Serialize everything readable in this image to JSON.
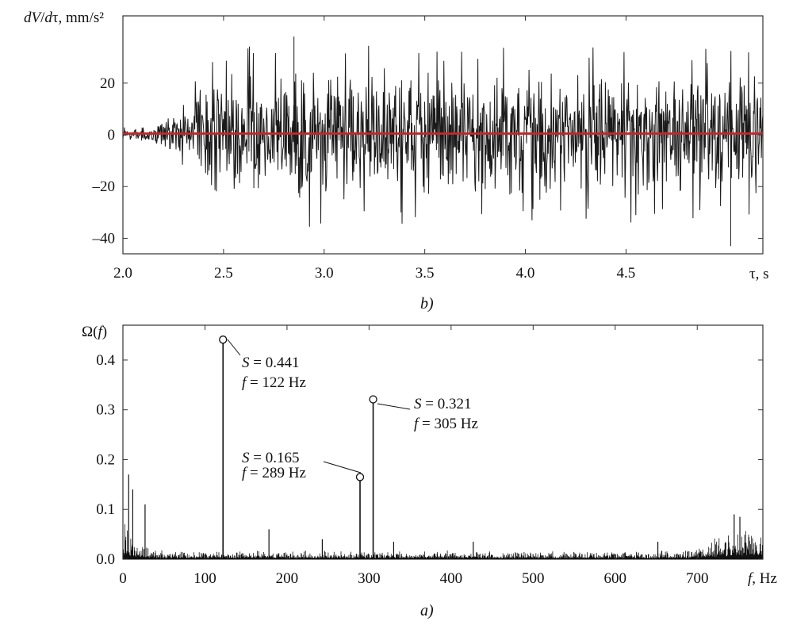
{
  "chart_data": [
    {
      "id": "upper",
      "type": "line",
      "caption": "b)",
      "ylabel": "dV/dτ, mm/s²",
      "xlabel": "τ, s",
      "xlim": [
        2.0,
        5.18
      ],
      "ylim": [
        -46,
        46
      ],
      "xticks": [
        2.0,
        2.5,
        3.0,
        3.5,
        4.0,
        4.5
      ],
      "xtick_labels": [
        "2.0",
        "2.5",
        "3.0",
        "3.5",
        "4.0",
        "4.5"
      ],
      "yticks": [
        20,
        0,
        -20,
        -40
      ],
      "ytick_labels": [
        "20",
        "0",
        "–20",
        "–40"
      ],
      "grid": false,
      "series": [
        {
          "name": "",
          "color": "#1a1a1a",
          "kind": "dense noisy signal",
          "envelope": {
            "t": [
              2.0,
              2.15,
              2.25,
              2.45,
              2.85,
              3.5,
              4.4,
              5.18
            ],
            "amplitude": [
              3,
              3,
              10,
              25,
              30,
              26,
              27,
              25
            ]
          },
          "visible_extremes": {
            "max": 38,
            "min": -43
          }
        },
        {
          "name": "",
          "color": "#c0282d",
          "x": [
            2.0,
            5.18
          ],
          "y": [
            0.5,
            0.5
          ]
        }
      ]
    },
    {
      "id": "lower",
      "type": "line",
      "caption": "a)",
      "ylabel": "Ω(f)",
      "xlabel": "f, Hz",
      "xlim": [
        0,
        780
      ],
      "ylim": [
        0,
        0.47
      ],
      "xticks": [
        0,
        100,
        200,
        300,
        400,
        500,
        600,
        700
      ],
      "xtick_labels": [
        "0",
        "100",
        "200",
        "300",
        "400",
        "500",
        "600",
        "700"
      ],
      "yticks": [
        0.0,
        0.1,
        0.2,
        0.3,
        0.4
      ],
      "ytick_labels": [
        "0.0",
        "0.1",
        "0.2",
        "0.3",
        "0.4"
      ],
      "grid": false,
      "series": [
        {
          "name": "",
          "color": "#111111",
          "kind": "spectrum",
          "background_level": 0.01
        }
      ],
      "peaks": [
        {
          "f": 122,
          "S": 0.441,
          "line1": {
            "var": "S",
            "text": " = 0.441"
          },
          "line2": {
            "var": "f",
            "text": " = 122 Hz"
          }
        },
        {
          "f": 289,
          "S": 0.165,
          "line1": {
            "var": "S",
            "text": " = 0.165"
          },
          "line2": {
            "var": "f",
            "text": " = 289 Hz"
          }
        },
        {
          "f": 305,
          "S": 0.321,
          "line1": {
            "var": "S",
            "text": " = 0.321"
          },
          "line2": {
            "var": "f",
            "text": " = 305 Hz"
          }
        }
      ],
      "minor_peaks": [
        {
          "f": 7,
          "S": 0.17
        },
        {
          "f": 12,
          "S": 0.14
        },
        {
          "f": 27,
          "S": 0.11
        },
        {
          "f": 178,
          "S": 0.06
        },
        {
          "f": 243,
          "S": 0.04
        },
        {
          "f": 330,
          "S": 0.035
        },
        {
          "f": 427,
          "S": 0.035
        },
        {
          "f": 652,
          "S": 0.035
        },
        {
          "f": 745,
          "S": 0.09
        },
        {
          "f": 752,
          "S": 0.085
        }
      ]
    }
  ]
}
